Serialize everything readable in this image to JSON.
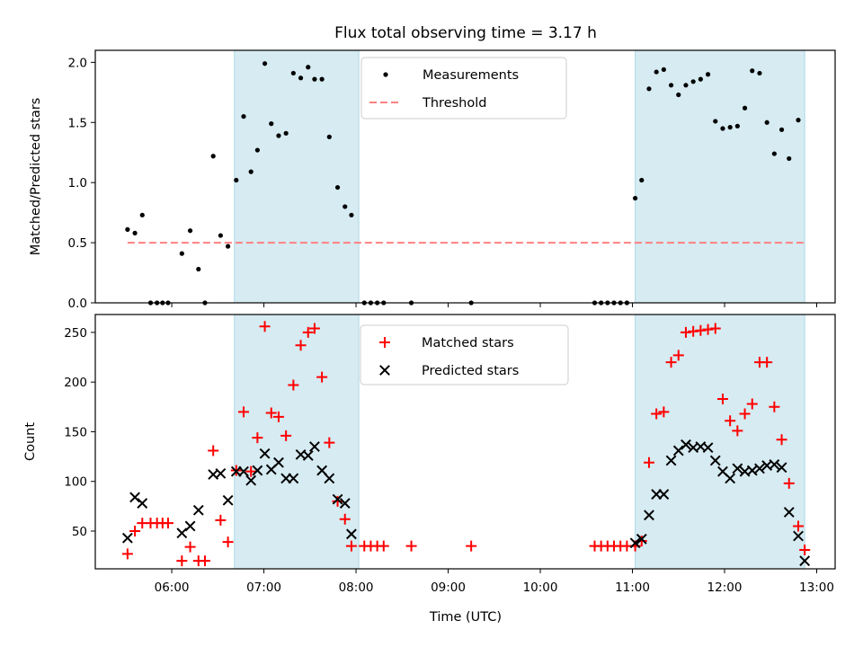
{
  "chart_data": {
    "title": "Flux total observing time = 3.17 h",
    "xlabel": "Time (UTC)",
    "x_ticks": [
      "06:00",
      "07:00",
      "08:00",
      "09:00",
      "10:00",
      "11:00",
      "12:00",
      "13:00"
    ],
    "x_tick_hours": [
      6,
      7,
      8,
      9,
      10,
      11,
      12,
      13
    ],
    "xlim_hours": [
      5.17,
      13.2
    ],
    "shaded_intervals_hours": [
      [
        6.68,
        8.03
      ],
      [
        11.03,
        12.87
      ]
    ],
    "shade_color": "#add8e6",
    "panels": [
      {
        "type": "scatter",
        "ylabel": "Matched/Predicted stars",
        "ylim": [
          0,
          2.1
        ],
        "y_ticks": [
          "0.0",
          "0.5",
          "1.0",
          "1.5",
          "2.0"
        ],
        "y_tick_values": [
          0,
          0.5,
          1.0,
          1.5,
          2.0
        ],
        "legend": "top-center",
        "series": [
          {
            "name": "Measurements",
            "style": "dot",
            "color": "#000000",
            "points": [
              [
                5.52,
                0.61
              ],
              [
                5.6,
                0.58
              ],
              [
                5.68,
                0.73
              ],
              [
                5.77,
                0.0
              ],
              [
                5.84,
                0.0
              ],
              [
                5.9,
                0.0
              ],
              [
                5.96,
                0.0
              ],
              [
                6.11,
                0.41
              ],
              [
                6.2,
                0.6
              ],
              [
                6.29,
                0.28
              ],
              [
                6.36,
                0.0
              ],
              [
                6.45,
                1.22
              ],
              [
                6.53,
                0.56
              ],
              [
                6.61,
                0.47
              ],
              [
                6.7,
                1.02
              ],
              [
                6.78,
                1.55
              ],
              [
                6.86,
                1.09
              ],
              [
                6.93,
                1.27
              ],
              [
                7.01,
                1.99
              ],
              [
                7.08,
                1.49
              ],
              [
                7.16,
                1.39
              ],
              [
                7.24,
                1.41
              ],
              [
                7.32,
                1.91
              ],
              [
                7.4,
                1.87
              ],
              [
                7.48,
                1.96
              ],
              [
                7.55,
                1.86
              ],
              [
                7.63,
                1.86
              ],
              [
                7.71,
                1.38
              ],
              [
                7.8,
                0.96
              ],
              [
                7.88,
                0.8
              ],
              [
                7.95,
                0.73
              ],
              [
                8.09,
                0.0
              ],
              [
                8.16,
                0.0
              ],
              [
                8.23,
                0.0
              ],
              [
                8.3,
                0.0
              ],
              [
                8.6,
                0.0
              ],
              [
                9.25,
                0.0
              ],
              [
                10.59,
                0.0
              ],
              [
                10.66,
                0.0
              ],
              [
                10.73,
                0.0
              ],
              [
                10.8,
                0.0
              ],
              [
                10.87,
                0.0
              ],
              [
                10.94,
                0.0
              ],
              [
                11.03,
                0.87
              ],
              [
                11.1,
                1.02
              ],
              [
                11.18,
                1.78
              ],
              [
                11.26,
                1.92
              ],
              [
                11.34,
                1.94
              ],
              [
                11.42,
                1.81
              ],
              [
                11.5,
                1.73
              ],
              [
                11.58,
                1.81
              ],
              [
                11.66,
                1.84
              ],
              [
                11.74,
                1.86
              ],
              [
                11.82,
                1.9
              ],
              [
                11.9,
                1.51
              ],
              [
                11.98,
                1.45
              ],
              [
                12.06,
                1.46
              ],
              [
                12.14,
                1.47
              ],
              [
                12.22,
                1.62
              ],
              [
                12.3,
                1.93
              ],
              [
                12.38,
                1.91
              ],
              [
                12.46,
                1.5
              ],
              [
                12.54,
                1.24
              ],
              [
                12.62,
                1.44
              ],
              [
                12.7,
                1.2
              ],
              [
                12.8,
                1.52
              ]
            ]
          },
          {
            "name": "Threshold",
            "style": "dashed",
            "color": "#ff8080",
            "points": [
              [
                5.52,
                0.5
              ],
              [
                12.87,
                0.5
              ]
            ]
          }
        ]
      },
      {
        "type": "scatter",
        "ylabel": "Count",
        "ylim": [
          12,
          268
        ],
        "y_ticks": [
          "50",
          "100",
          "150",
          "200",
          "250"
        ],
        "y_tick_values": [
          50,
          100,
          150,
          200,
          250
        ],
        "legend": "top-center",
        "series": [
          {
            "name": "Matched stars",
            "style": "plus",
            "color": "#ff0000",
            "points": [
              [
                5.52,
                27
              ],
              [
                5.6,
                50
              ],
              [
                5.68,
                58
              ],
              [
                5.77,
                58
              ],
              [
                5.84,
                58
              ],
              [
                5.9,
                58
              ],
              [
                5.96,
                58
              ],
              [
                6.11,
                20
              ],
              [
                6.2,
                34
              ],
              [
                6.29,
                20
              ],
              [
                6.36,
                20
              ],
              [
                6.45,
                131
              ],
              [
                6.53,
                61
              ],
              [
                6.61,
                39
              ],
              [
                6.7,
                111
              ],
              [
                6.78,
                170
              ],
              [
                6.86,
                110
              ],
              [
                6.93,
                144
              ],
              [
                7.01,
                256
              ],
              [
                7.08,
                169
              ],
              [
                7.16,
                165
              ],
              [
                7.24,
                146
              ],
              [
                7.32,
                197
              ],
              [
                7.4,
                237
              ],
              [
                7.48,
                250
              ],
              [
                7.55,
                254
              ],
              [
                7.63,
                205
              ],
              [
                7.71,
                139
              ],
              [
                7.8,
                80
              ],
              [
                7.88,
                62
              ],
              [
                7.95,
                35
              ],
              [
                8.09,
                35
              ],
              [
                8.16,
                35
              ],
              [
                8.23,
                35
              ],
              [
                8.3,
                35
              ],
              [
                8.6,
                35
              ],
              [
                9.25,
                35
              ],
              [
                10.59,
                35
              ],
              [
                10.66,
                35
              ],
              [
                10.73,
                35
              ],
              [
                10.8,
                35
              ],
              [
                10.87,
                35
              ],
              [
                10.94,
                35
              ],
              [
                11.03,
                35
              ],
              [
                11.1,
                40
              ],
              [
                11.18,
                119
              ],
              [
                11.26,
                168
              ],
              [
                11.34,
                170
              ],
              [
                11.42,
                220
              ],
              [
                11.5,
                227
              ],
              [
                11.58,
                250
              ],
              [
                11.66,
                251
              ],
              [
                11.74,
                252
              ],
              [
                11.82,
                253
              ],
              [
                11.9,
                254
              ],
              [
                11.98,
                183
              ],
              [
                12.06,
                161
              ],
              [
                12.14,
                151
              ],
              [
                12.22,
                168
              ],
              [
                12.3,
                178
              ],
              [
                12.38,
                220
              ],
              [
                12.46,
                220
              ],
              [
                12.54,
                175
              ],
              [
                12.62,
                142
              ],
              [
                12.7,
                98
              ],
              [
                12.8,
                55
              ],
              [
                12.87,
                31
              ]
            ]
          },
          {
            "name": "Predicted stars",
            "style": "x",
            "color": "#000000",
            "points": [
              [
                5.52,
                43
              ],
              [
                5.6,
                84
              ],
              [
                5.68,
                78
              ],
              [
                6.11,
                48
              ],
              [
                6.2,
                55
              ],
              [
                6.29,
                71
              ],
              [
                6.45,
                107
              ],
              [
                6.53,
                108
              ],
              [
                6.61,
                81
              ],
              [
                6.7,
                110
              ],
              [
                6.78,
                110
              ],
              [
                6.86,
                101
              ],
              [
                6.93,
                111
              ],
              [
                7.01,
                128
              ],
              [
                7.08,
                112
              ],
              [
                7.16,
                119
              ],
              [
                7.24,
                103
              ],
              [
                7.32,
                103
              ],
              [
                7.4,
                127
              ],
              [
                7.48,
                126
              ],
              [
                7.55,
                135
              ],
              [
                7.63,
                111
              ],
              [
                7.71,
                103
              ],
              [
                7.8,
                82
              ],
              [
                7.88,
                78
              ],
              [
                7.95,
                47
              ],
              [
                11.03,
                38
              ],
              [
                11.1,
                42
              ],
              [
                11.18,
                66
              ],
              [
                11.26,
                87
              ],
              [
                11.34,
                87
              ],
              [
                11.42,
                121
              ],
              [
                11.5,
                131
              ],
              [
                11.58,
                137
              ],
              [
                11.66,
                134
              ],
              [
                11.74,
                135
              ],
              [
                11.82,
                134
              ],
              [
                11.9,
                121
              ],
              [
                11.98,
                110
              ],
              [
                12.06,
                103
              ],
              [
                12.14,
                113
              ],
              [
                12.22,
                110
              ],
              [
                12.3,
                111
              ],
              [
                12.38,
                113
              ],
              [
                12.46,
                116
              ],
              [
                12.54,
                117
              ],
              [
                12.62,
                114
              ],
              [
                12.7,
                69
              ],
              [
                12.8,
                45
              ],
              [
                12.87,
                20
              ]
            ]
          }
        ]
      }
    ]
  }
}
